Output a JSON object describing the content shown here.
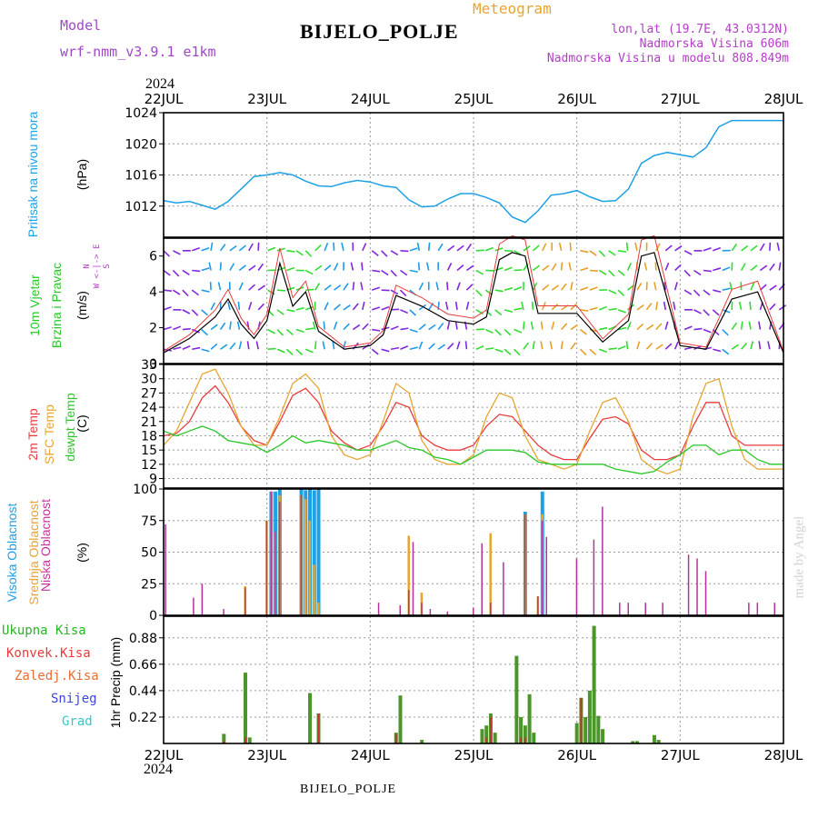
{
  "header": {
    "model_label": "Model",
    "model_name": "wrf-nmm_v3.9.1  e1km",
    "station": "BIJELO_POLJE",
    "meteogram": "Meteogram",
    "lonlat": "lon,lat (19.7E, 43.0312N)",
    "altitude": "Nadmorska Visina 606m",
    "model_altitude": "Nadmorska Visina u modelu 808.849m",
    "footer_station": "BIJELO_POLJE",
    "watermark": "made by Angel"
  },
  "time_axis": {
    "year": "2024",
    "days": [
      "22JUL",
      "23JUL",
      "24JUL",
      "25JUL",
      "26JUL",
      "27JUL",
      "28JUL"
    ]
  },
  "labels": {
    "pressure": [
      "Pritisak na nivou mora",
      "(hPa)"
    ],
    "wind": [
      "10m Vjetar",
      "Brzina i Pravac",
      "(m/s)"
    ],
    "wind_compass": [
      "N",
      "W  <-|->  E",
      "S"
    ],
    "temp": [
      "2m Temp",
      "SFC Temp",
      "dewpt Temp",
      "(C)"
    ],
    "cloud": [
      "Visoka Oblacnost",
      "Srednja Oblacnost",
      "Niska Oblacnost",
      "(%)"
    ],
    "precip_unit": "1hr Precip (mm)",
    "precip_legend": [
      "Ukupna Kisa",
      "Konvek.Kisa",
      "Zaledj.Kisa",
      "Snijeg",
      "Grad"
    ]
  },
  "colors": {
    "pressure": "#1ea0e6",
    "temp2m": "#e83c3c",
    "sfc": "#e6a532",
    "dew": "#28c828",
    "cloud_high": "#1ea0e6",
    "cloud_mid": "#e6a532",
    "cloud_low": "#b4329b",
    "precip_total": "#4b9628",
    "precip_conv": "#c83232",
    "precip_frz": "#e66e32",
    "snow": "#3c46dc",
    "hail": "#32c8c8",
    "wind_low": "#8228dc",
    "wind_mid": "#1e9be6",
    "wind_hi": "#32dc32",
    "wind_vhi": "#e6a028"
  },
  "chart_data": [
    {
      "type": "line",
      "name": "pressure",
      "x_hours": [
        0,
        3,
        6,
        9,
        12,
        15,
        18,
        21,
        24,
        27,
        30,
        33,
        36,
        39,
        42,
        45,
        48,
        51,
        54,
        57,
        60,
        63,
        66,
        69,
        72,
        75,
        78,
        81,
        84,
        87,
        90,
        93,
        96,
        99,
        102,
        105,
        108,
        111,
        114,
        117,
        120,
        123,
        126,
        129,
        132,
        135,
        138,
        141,
        144
      ],
      "values": [
        1012.7,
        1012.4,
        1012.6,
        1012.1,
        1011.6,
        1012.6,
        1014.2,
        1015.8,
        1016.0,
        1016.3,
        1016.0,
        1015.2,
        1014.6,
        1014.5,
        1015.0,
        1015.3,
        1015.1,
        1014.6,
        1014.4,
        1012.8,
        1011.9,
        1012.0,
        1012.9,
        1013.6,
        1013.6,
        1013.1,
        1012.4,
        1010.6,
        1009.9,
        1011.4,
        1013.4,
        1013.6,
        1014.0,
        1013.2,
        1012.6,
        1012.7,
        1014.2,
        1017.5,
        1018.5,
        1018.9,
        1018.6,
        1018.3,
        1019.5,
        1022.2,
        1023.0,
        1023.0,
        1023.0,
        1023.0,
        1023.0
      ],
      "ylim": [
        1008,
        1024
      ],
      "yticks": [
        1012,
        1016,
        1020,
        1024
      ]
    },
    {
      "type": "line",
      "name": "wind_speed",
      "x_hours": [
        0,
        6,
        12,
        15,
        18,
        21,
        24,
        27,
        30,
        33,
        36,
        42,
        48,
        51,
        54,
        60,
        66,
        72,
        75,
        78,
        81,
        84,
        87,
        90,
        96,
        102,
        108,
        111,
        114,
        120,
        126,
        132,
        138,
        144
      ],
      "values": [
        0.6,
        1.4,
        2.6,
        3.6,
        2.2,
        1.4,
        2.4,
        5.6,
        3.2,
        4.0,
        1.8,
        0.8,
        1.0,
        1.6,
        3.8,
        3.2,
        2.4,
        2.2,
        2.6,
        5.8,
        6.2,
        6.0,
        2.8,
        2.8,
        2.8,
        1.2,
        2.4,
        6.0,
        6.2,
        1.0,
        0.8,
        3.6,
        4.0,
        0.6
      ],
      "ylim": [
        0,
        7
      ],
      "yticks": [
        0,
        2,
        4,
        6
      ]
    },
    {
      "type": "line",
      "name": "temperature",
      "x_hours": [
        0,
        3,
        6,
        9,
        12,
        15,
        18,
        21,
        24,
        27,
        30,
        33,
        36,
        39,
        42,
        45,
        48,
        51,
        54,
        57,
        60,
        63,
        66,
        69,
        72,
        75,
        78,
        81,
        84,
        87,
        90,
        93,
        96,
        99,
        102,
        105,
        108,
        111,
        114,
        117,
        120,
        123,
        126,
        129,
        132,
        135,
        138,
        141,
        144
      ],
      "series": [
        {
          "name": "2m Temp",
          "values": [
            18,
            18.5,
            21,
            26,
            28.5,
            25,
            20,
            17,
            16,
            21,
            26.5,
            28,
            25,
            19,
            16.5,
            15,
            16,
            20,
            25,
            24,
            18,
            16,
            15,
            15,
            16,
            20,
            22.5,
            22,
            19,
            16,
            14,
            13,
            13,
            17.5,
            21.5,
            22,
            20.5,
            15,
            13,
            13,
            14,
            20,
            25,
            25,
            18,
            16,
            16,
            16,
            16
          ]
        },
        {
          "name": "SFC Temp",
          "values": [
            16,
            19,
            25,
            31,
            32,
            27,
            20,
            16,
            16,
            22,
            29,
            31,
            28,
            18,
            14,
            13,
            14,
            21,
            29,
            27,
            17,
            13,
            12,
            12,
            14,
            22,
            27,
            26,
            18,
            13,
            12,
            11,
            12,
            19,
            25,
            26,
            21,
            13,
            11,
            10,
            11,
            22,
            29,
            30,
            20,
            13,
            11,
            11,
            11
          ]
        },
        {
          "name": "dewpt Temp",
          "values": [
            19,
            18,
            19,
            20,
            19,
            17,
            16.5,
            16,
            14.5,
            16,
            18,
            16.5,
            17,
            16.5,
            16,
            15,
            15,
            16,
            17,
            15.5,
            15,
            13.5,
            13,
            12,
            13.5,
            15,
            15,
            15,
            14.5,
            12.5,
            12,
            12,
            12,
            12,
            12,
            11,
            10.5,
            10,
            10.5,
            12.5,
            14,
            16,
            16,
            14,
            15,
            15,
            13,
            12,
            12
          ]
        }
      ],
      "ylim": [
        7,
        33
      ],
      "yticks": [
        9,
        12,
        15,
        18,
        21,
        24,
        27,
        30,
        33
      ]
    },
    {
      "type": "bar",
      "name": "cloud_cover",
      "bars": [
        {
          "h": 0.5,
          "low": 72
        },
        {
          "h": 7,
          "low": 14
        },
        {
          "h": 9,
          "low": 25
        },
        {
          "h": 14,
          "low": 5
        },
        {
          "h": 19,
          "low": 22,
          "mid": 23
        },
        {
          "h": 24,
          "low": 75,
          "mid": 75
        },
        {
          "h": 25,
          "low": 98,
          "mid": 98,
          "high": 98
        },
        {
          "h": 26,
          "low": 66,
          "mid": 66,
          "high": 98
        },
        {
          "h": 27,
          "high": 100,
          "mid": 95,
          "low": 90
        },
        {
          "h": 32,
          "high": 100,
          "mid": 95,
          "low": 95
        },
        {
          "h": 33,
          "high": 99,
          "mid": 92
        },
        {
          "h": 34,
          "high": 100,
          "mid": 75
        },
        {
          "h": 35,
          "high": 99,
          "mid": 40
        },
        {
          "h": 36,
          "high": 100,
          "mid": 10
        },
        {
          "h": 50,
          "low": 10
        },
        {
          "h": 55,
          "low": 8
        },
        {
          "h": 57,
          "mid": 63,
          "low": 20
        },
        {
          "h": 58,
          "low": 58
        },
        {
          "h": 60,
          "mid": 18,
          "low": 10
        },
        {
          "h": 62,
          "low": 5
        },
        {
          "h": 66,
          "low": 3
        },
        {
          "h": 72,
          "low": 6
        },
        {
          "h": 74,
          "low": 57
        },
        {
          "h": 76,
          "mid": 65,
          "low": 10
        },
        {
          "h": 79,
          "low": 42
        },
        {
          "h": 84,
          "low": 80,
          "mid": 80,
          "high": 82
        },
        {
          "h": 87,
          "low": 15,
          "mid": 15
        },
        {
          "h": 88,
          "high": 98,
          "mid": 80,
          "low": 75
        },
        {
          "h": 89,
          "low": 62
        },
        {
          "h": 96,
          "low": 45
        },
        {
          "h": 100,
          "low": 60
        },
        {
          "h": 102,
          "low": 86
        },
        {
          "h": 106,
          "low": 10
        },
        {
          "h": 108,
          "low": 10
        },
        {
          "h": 112,
          "low": 10
        },
        {
          "h": 116,
          "low": 10
        },
        {
          "h": 122,
          "low": 48
        },
        {
          "h": 124,
          "low": 45
        },
        {
          "h": 126,
          "low": 35
        },
        {
          "h": 136,
          "low": 10
        },
        {
          "h": 138,
          "low": 10
        },
        {
          "h": 142,
          "low": 10
        }
      ],
      "ylim": [
        0,
        100
      ],
      "yticks": [
        0,
        25,
        50,
        75,
        100
      ]
    },
    {
      "type": "bar",
      "name": "precipitation",
      "bars": [
        {
          "h": 14,
          "total": 0.08,
          "conv": 0.02
        },
        {
          "h": 19,
          "total": 0.59,
          "conv": 0.05
        },
        {
          "h": 20,
          "total": 0.05
        },
        {
          "h": 34,
          "total": 0.42
        },
        {
          "h": 36,
          "total": 0.25,
          "conv": 0.25
        },
        {
          "h": 54,
          "total": 0.09,
          "conv": 0.08
        },
        {
          "h": 55,
          "total": 0.4
        },
        {
          "h": 60,
          "total": 0.03
        },
        {
          "h": 74,
          "total": 0.12
        },
        {
          "h": 75,
          "total": 0.15,
          "conv": 0.05
        },
        {
          "h": 76,
          "total": 0.25,
          "conv": 0.22
        },
        {
          "h": 77,
          "total": 0.09
        },
        {
          "h": 82,
          "total": 0.73
        },
        {
          "h": 83,
          "total": 0.22,
          "conv": 0.05
        },
        {
          "h": 84,
          "total": 0.15,
          "conv": 0.05
        },
        {
          "h": 85,
          "total": 0.41
        },
        {
          "h": 86,
          "total": 0.09
        },
        {
          "h": 96,
          "total": 0.17
        },
        {
          "h": 97,
          "total": 0.38,
          "conv": 0.38
        },
        {
          "h": 98,
          "total": 0.22
        },
        {
          "h": 99,
          "total": 0.44
        },
        {
          "h": 100,
          "total": 0.98
        },
        {
          "h": 101,
          "total": 0.23
        },
        {
          "h": 102,
          "total": 0.12
        },
        {
          "h": 109,
          "total": 0.02
        },
        {
          "h": 110,
          "total": 0.02
        },
        {
          "h": 114,
          "total": 0.07
        },
        {
          "h": 115,
          "total": 0.03
        }
      ],
      "ylim": [
        0,
        1.06
      ],
      "yticks": [
        0.22,
        0.44,
        0.66,
        0.88
      ]
    }
  ]
}
